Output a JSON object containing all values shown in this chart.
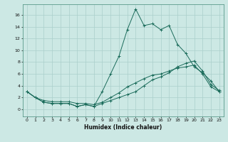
{
  "xlabel": "Humidex (Indice chaleur)",
  "background_color": "#cce8e4",
  "line_color": "#1a6b5a",
  "xlim": [
    -0.5,
    23.5
  ],
  "ylim": [
    -1.2,
    17.8
  ],
  "xticks": [
    0,
    1,
    2,
    3,
    4,
    5,
    6,
    7,
    8,
    9,
    10,
    11,
    12,
    13,
    14,
    15,
    16,
    17,
    18,
    19,
    20,
    21,
    22,
    23
  ],
  "yticks": [
    0,
    2,
    4,
    6,
    8,
    10,
    12,
    14,
    16
  ],
  "line1_x": [
    0,
    1,
    2,
    3,
    4,
    5,
    6,
    7,
    8,
    9,
    10,
    11,
    12,
    13,
    14,
    15,
    16,
    17,
    18,
    19,
    20,
    21,
    22,
    23
  ],
  "line1_y": [
    3.0,
    2.0,
    1.2,
    1.0,
    1.0,
    1.0,
    0.5,
    0.8,
    0.5,
    3.0,
    6.0,
    9.0,
    13.5,
    17.0,
    14.2,
    14.5,
    13.5,
    14.2,
    11.0,
    9.5,
    7.2,
    6.2,
    4.8,
    3.0
  ],
  "line2_x": [
    0,
    1,
    2,
    3,
    4,
    5,
    6,
    7,
    8,
    9,
    10,
    11,
    12,
    13,
    14,
    15,
    16,
    17,
    18,
    19,
    20,
    21,
    22,
    23
  ],
  "line2_y": [
    3.0,
    2.0,
    1.2,
    1.0,
    1.0,
    1.0,
    0.5,
    0.8,
    0.5,
    1.0,
    1.5,
    2.0,
    2.5,
    3.0,
    4.0,
    5.0,
    5.5,
    6.2,
    7.2,
    7.8,
    8.2,
    6.5,
    4.2,
    3.2
  ],
  "line3_x": [
    0,
    1,
    2,
    3,
    4,
    5,
    6,
    7,
    8,
    9,
    10,
    11,
    12,
    13,
    14,
    15,
    16,
    17,
    18,
    19,
    20,
    21,
    22,
    23
  ],
  "line3_y": [
    3.0,
    2.0,
    1.5,
    1.3,
    1.3,
    1.3,
    1.0,
    1.0,
    0.8,
    1.2,
    2.0,
    2.8,
    3.8,
    4.5,
    5.2,
    5.8,
    6.0,
    6.5,
    7.0,
    7.2,
    7.5,
    6.0,
    3.8,
    3.0
  ],
  "xlabel_fontsize": 5.5,
  "tick_fontsize": 4.5,
  "grid_color": "#aacfcb",
  "spine_color": "#5a9a8a"
}
